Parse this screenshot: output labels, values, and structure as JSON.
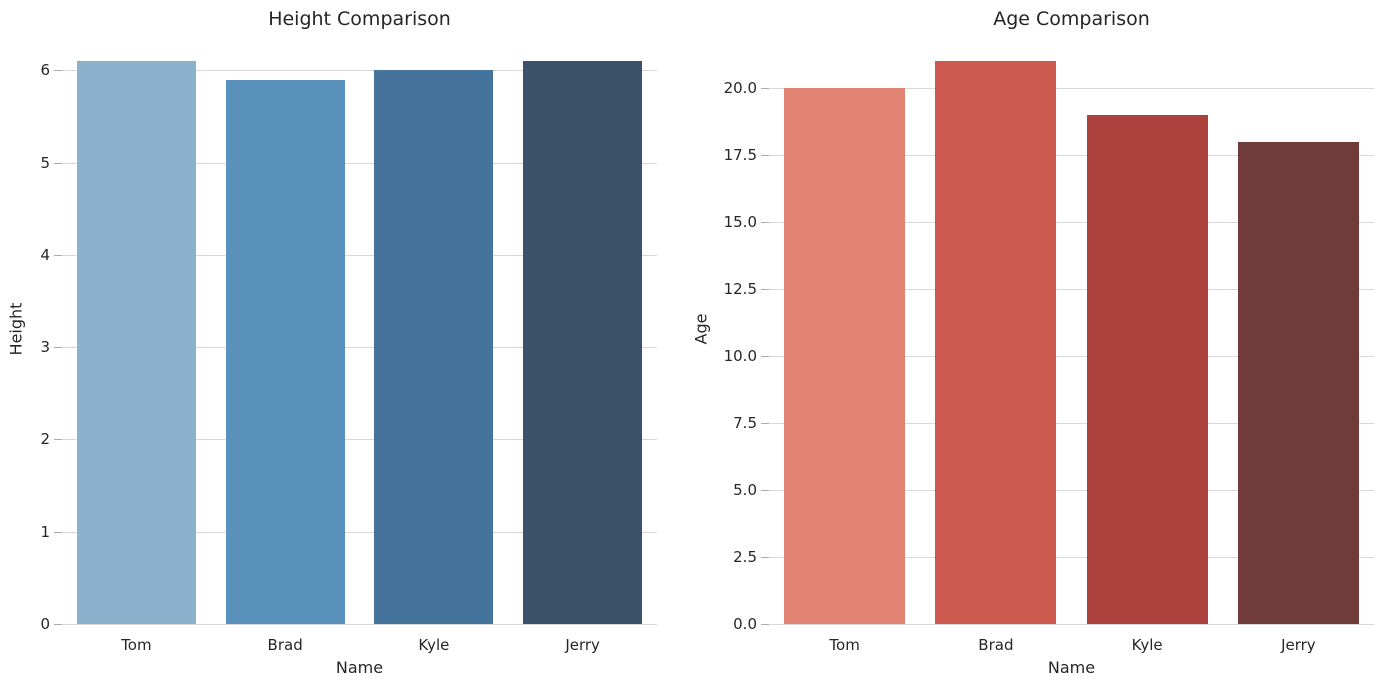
{
  "figure": {
    "background": "#ffffff",
    "text_color": "#262626",
    "grid_color": "#d9d9d9",
    "tick_color": "#ababab"
  },
  "chart_data": [
    {
      "type": "bar",
      "title": "Height Comparison",
      "xlabel": "Name",
      "ylabel": "Height",
      "categories": [
        "Tom",
        "Brad",
        "Kyle",
        "Jerry"
      ],
      "values": [
        6.1,
        5.9,
        6.0,
        6.1
      ],
      "bar_colors": [
        "#8bb1cd",
        "#5b92bc",
        "#44749c",
        "#3b5268"
      ],
      "ytick_values": [
        0,
        1,
        2,
        3,
        4,
        5,
        6
      ],
      "ytick_labels": [
        "0",
        "1",
        "2",
        "3",
        "4",
        "5",
        "6"
      ],
      "ylim": [
        0,
        6.405
      ],
      "grid": true,
      "legend": "none"
    },
    {
      "type": "bar",
      "title": "Age Comparison",
      "xlabel": "Name",
      "ylabel": "Age",
      "categories": [
        "Tom",
        "Brad",
        "Kyle",
        "Jerry"
      ],
      "values": [
        20,
        21,
        19,
        18
      ],
      "bar_colors": [
        "#e08372",
        "#cd584e",
        "#ad413d",
        "#6f3c39"
      ],
      "ytick_values": [
        0,
        2.5,
        5,
        7.5,
        10,
        12.5,
        15,
        17.5,
        20
      ],
      "ytick_labels": [
        "0.0",
        "2.5",
        "5.0",
        "7.5",
        "10.0",
        "12.5",
        "15.0",
        "17.5",
        "20.0"
      ],
      "ylim": [
        0,
        22.05
      ],
      "grid": true,
      "legend": "none"
    }
  ]
}
